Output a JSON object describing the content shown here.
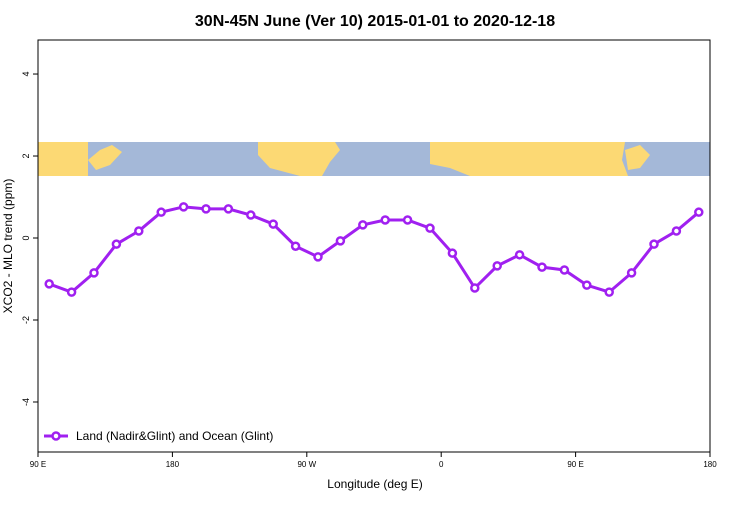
{
  "chart_data": {
    "type": "line",
    "title": "30N-45N June (Ver 10)   2015-01-01 to 2020-12-18",
    "x_label": "Longitude (deg E)",
    "y_label": "XCO2 - MLO trend (ppm)",
    "x": [
      97.5,
      112.5,
      127.5,
      142.5,
      157.5,
      172.5,
      187.5,
      202.5,
      217.5,
      232.5,
      247.5,
      262.5,
      277.5,
      292.5,
      307.5,
      322.5,
      337.5,
      352.5,
      367.5,
      382.5,
      397.5,
      412.5,
      427.5,
      442.5,
      457.5,
      472.5,
      487.5,
      502.5,
      517.5,
      532.5
    ],
    "series": [
      {
        "name": "Land (Nadir&Glint) and Ocean (Glint)",
        "color": "#a020f0",
        "values": [
          -1.12,
          -1.32,
          -0.85,
          -0.15,
          0.17,
          0.63,
          0.76,
          0.71,
          0.71,
          0.56,
          0.34,
          -0.2,
          -0.46,
          -0.07,
          0.32,
          0.44,
          0.44,
          0.24,
          -0.37,
          -1.22,
          -0.68,
          -0.41,
          -0.71,
          -0.78,
          -1.15,
          -1.32,
          -0.85,
          -0.15,
          0.17,
          0.63
        ]
      }
    ],
    "xlim": [
      90,
      540
    ],
    "xticks": [
      {
        "value": 90,
        "label": "90 E"
      },
      180,
      {
        "value": 270,
        "label": "90 W"
      },
      {
        "value": 360,
        "label": "0"
      },
      {
        "value": 450,
        "label": "90 E"
      },
      {
        "value": 540,
        "label": "180"
      }
    ],
    "ylim": [
      -5.22,
      4.83
    ],
    "yticks": [
      -4,
      -2,
      0,
      2,
      4
    ],
    "legend": "bottom-left"
  }
}
